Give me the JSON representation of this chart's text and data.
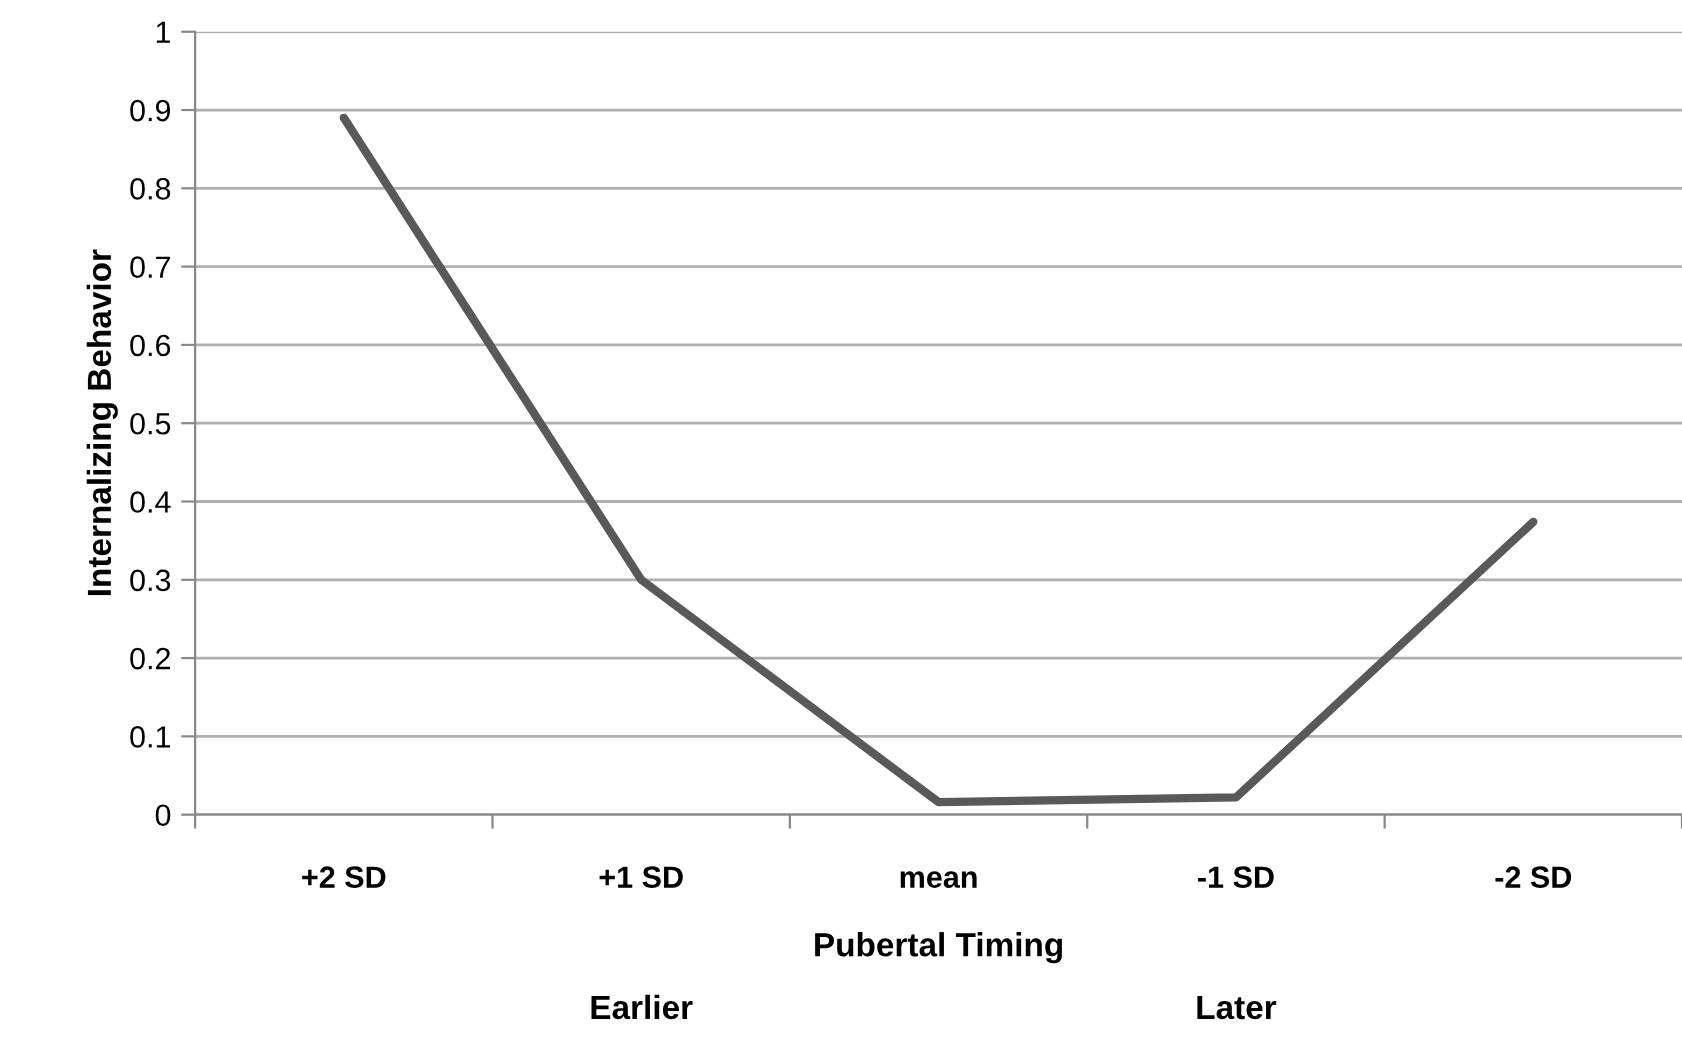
{
  "chart_data": {
    "type": "line",
    "xlabel": "Pubertal Timing",
    "ylabel": "Internalizing Behavior",
    "categories": [
      "+2 SD",
      "+1 SD",
      "mean",
      "-1 SD",
      "-2 SD"
    ],
    "series": [
      {
        "color": "#595959",
        "values": [
          0.89,
          0.3,
          0.016,
          0.022,
          0.374
        ]
      }
    ],
    "ylim": [
      0,
      1
    ],
    "yticks": [
      0,
      0.1,
      0.2,
      0.3,
      0.4,
      0.5,
      0.6,
      0.7,
      0.8,
      0.9,
      1
    ],
    "grid": "y",
    "annotations": [
      "Earlier",
      "Later"
    ]
  }
}
